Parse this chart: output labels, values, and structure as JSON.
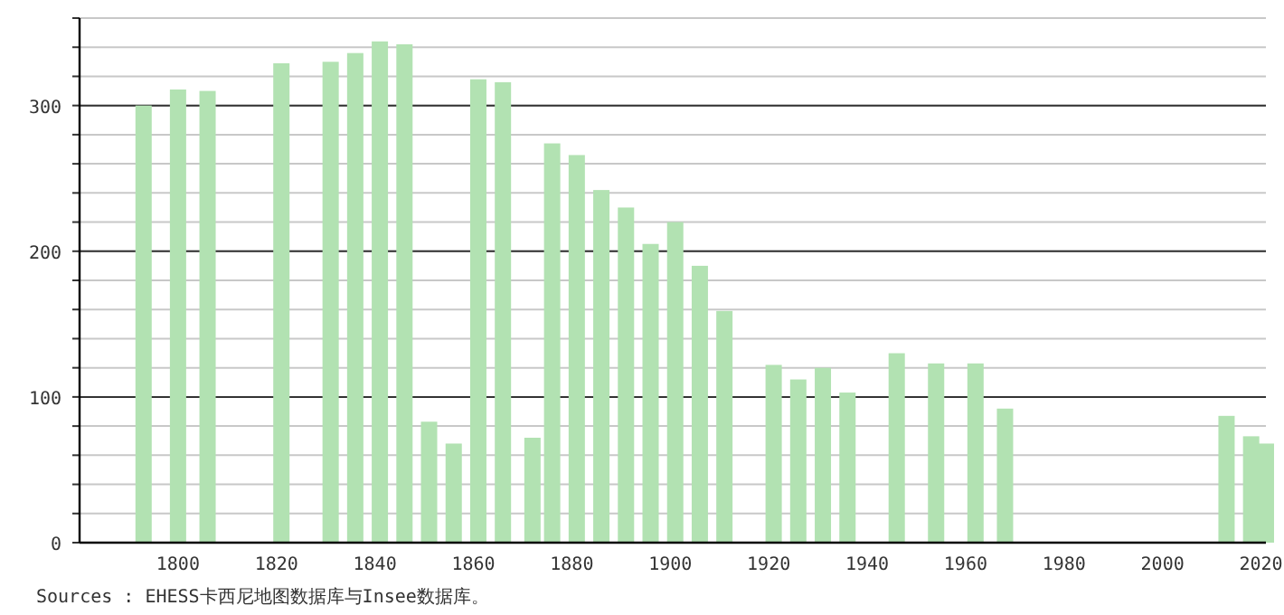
{
  "chart_data": {
    "type": "bar",
    "x": [
      1793,
      1800,
      1806,
      1821,
      1831,
      1836,
      1841,
      1846,
      1851,
      1856,
      1861,
      1866,
      1872,
      1876,
      1881,
      1886,
      1891,
      1896,
      1901,
      1906,
      1911,
      1921,
      1926,
      1931,
      1936,
      1946,
      1954,
      1962,
      1968,
      2013,
      2018,
      2021
    ],
    "values": [
      300,
      311,
      310,
      329,
      330,
      336,
      344,
      342,
      83,
      68,
      318,
      316,
      72,
      274,
      266,
      242,
      230,
      205,
      220,
      190,
      159,
      122,
      112,
      120,
      103,
      130,
      123,
      123,
      92,
      87,
      73,
      68
    ],
    "color": "#b2e2b2",
    "xlim": [
      1780,
      2021
    ],
    "xticks": [
      1800,
      1820,
      1840,
      1860,
      1880,
      1900,
      1920,
      1940,
      1960,
      1980,
      2000,
      2020
    ],
    "ylim": [
      0,
      360
    ],
    "yticks": [
      0,
      100,
      200,
      300
    ],
    "grid": "y",
    "annotations": [
      "Sources : EHESS卡西尼地图数据库与Insee数据库。"
    ]
  }
}
